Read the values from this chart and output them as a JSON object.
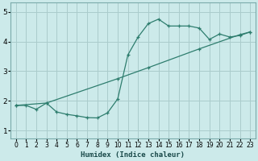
{
  "x_curve": [
    0,
    1,
    2,
    3,
    4,
    5,
    6,
    7,
    8,
    9,
    10,
    11,
    12,
    13,
    14,
    15,
    16,
    17,
    18,
    19,
    20,
    21,
    22,
    23
  ],
  "y_curve": [
    1.85,
    1.85,
    1.72,
    1.93,
    1.63,
    1.55,
    1.5,
    1.44,
    1.43,
    1.6,
    2.07,
    3.55,
    4.15,
    4.6,
    4.75,
    4.52,
    4.52,
    4.52,
    4.45,
    4.07,
    4.25,
    4.15,
    4.2,
    4.32
  ],
  "x_linear": [
    0,
    3,
    10,
    13,
    18,
    22,
    23
  ],
  "y_linear": [
    1.85,
    1.93,
    2.75,
    3.12,
    3.75,
    4.23,
    4.32
  ],
  "color": "#2e7d6e",
  "bg_color": "#cceaea",
  "grid_color": "#aacccc",
  "xlabel": "Humidex (Indice chaleur)",
  "yticks": [
    1,
    2,
    3,
    4,
    5
  ],
  "xlim": [
    -0.5,
    23.5
  ],
  "ylim": [
    0.75,
    5.3
  ]
}
